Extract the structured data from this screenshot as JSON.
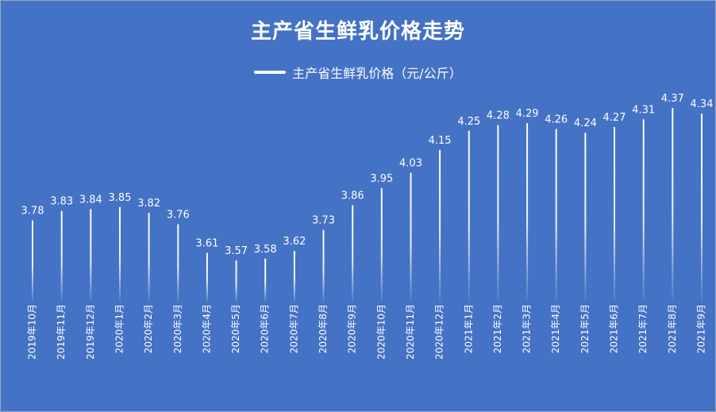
{
  "chart_data": {
    "type": "bar",
    "title": "主产省生鲜乳价格走势",
    "legend_position": "top",
    "series": [
      {
        "name": "主产省生鲜乳价格（元/公斤）",
        "values": [
          3.78,
          3.83,
          3.84,
          3.85,
          3.82,
          3.76,
          3.61,
          3.57,
          3.58,
          3.62,
          3.73,
          3.86,
          3.95,
          4.03,
          4.15,
          4.25,
          4.28,
          4.29,
          4.26,
          4.24,
          4.27,
          4.31,
          4.37,
          4.34
        ]
      }
    ],
    "categories": [
      "2019年10月",
      "2019年11月",
      "2019年12月",
      "2020年1月",
      "2020年2月",
      "2020年3月",
      "2020年4月",
      "2020年5月",
      "2020年6月",
      "2020年7月",
      "2020年8月",
      "2020年9月",
      "2020年10月",
      "2020年11月",
      "2020年12月",
      "2021年1月",
      "2021年2月",
      "2021年3月",
      "2021年4月",
      "2021年5月",
      "2021年6月",
      "2021年7月",
      "2021年8月",
      "2021年9月"
    ],
    "ylim": [
      0,
      4.6
    ],
    "grid": false
  },
  "colors": {
    "background": "#4472c4",
    "bar": "#ffffff"
  }
}
